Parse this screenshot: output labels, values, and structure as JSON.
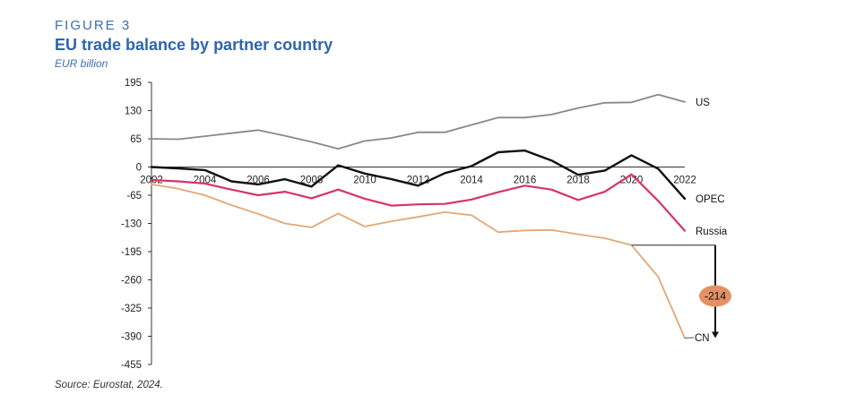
{
  "figure_label": "FIGURE 3",
  "source": "Source: Eurostat, 2024.",
  "chart_data": {
    "type": "line",
    "title": "EU trade balance by partner country",
    "subtitle": "EUR billion",
    "xlabel": "",
    "ylabel": "",
    "x": [
      2002,
      2003,
      2004,
      2005,
      2006,
      2007,
      2008,
      2009,
      2010,
      2011,
      2012,
      2013,
      2014,
      2015,
      2016,
      2017,
      2018,
      2019,
      2020,
      2021,
      2022
    ],
    "x_tick_labels": [
      "2002",
      "2004",
      "2006",
      "2008",
      "2010",
      "2012",
      "2014",
      "2016",
      "2018",
      "2020",
      "2022"
    ],
    "y_tick_labels": [
      "195",
      "130",
      "65",
      "0",
      "-65",
      "-130",
      "-195",
      "-260",
      "-325",
      "-390",
      "-455"
    ],
    "ylim": [
      -455,
      195
    ],
    "grid": false,
    "series": [
      {
        "name": "US",
        "color": "#888888",
        "values": [
          65,
          64,
          71,
          78,
          85,
          72,
          58,
          42,
          60,
          67,
          80,
          80,
          97,
          114,
          114,
          121,
          136,
          148,
          149,
          167,
          150
        ]
      },
      {
        "name": "OPEC",
        "color": "#111111",
        "values": [
          0,
          -3,
          -7,
          -33,
          -40,
          -28,
          -45,
          4,
          -15,
          -28,
          -43,
          -14,
          2,
          34,
          38,
          15,
          -18,
          -8,
          27,
          -4,
          -73
        ]
      },
      {
        "name": "Russia",
        "color": "#d8336b",
        "values": [
          -30,
          -33,
          -38,
          -52,
          -65,
          -57,
          -72,
          -52,
          -73,
          -89,
          -86,
          -85,
          -75,
          -58,
          -43,
          -52,
          -76,
          -57,
          -17,
          -78,
          -147
        ]
      },
      {
        "name": "CN",
        "color": "#e2a878",
        "values": [
          -40,
          -50,
          -65,
          -88,
          -108,
          -130,
          -139,
          -107,
          -137,
          -125,
          -115,
          -104,
          -111,
          -150,
          -146,
          -145,
          -155,
          -164,
          -180,
          -253,
          -394
        ]
      }
    ],
    "annotation": {
      "label": "-214",
      "from_year": 2020,
      "from_value": -180,
      "to_value": -394
    }
  }
}
